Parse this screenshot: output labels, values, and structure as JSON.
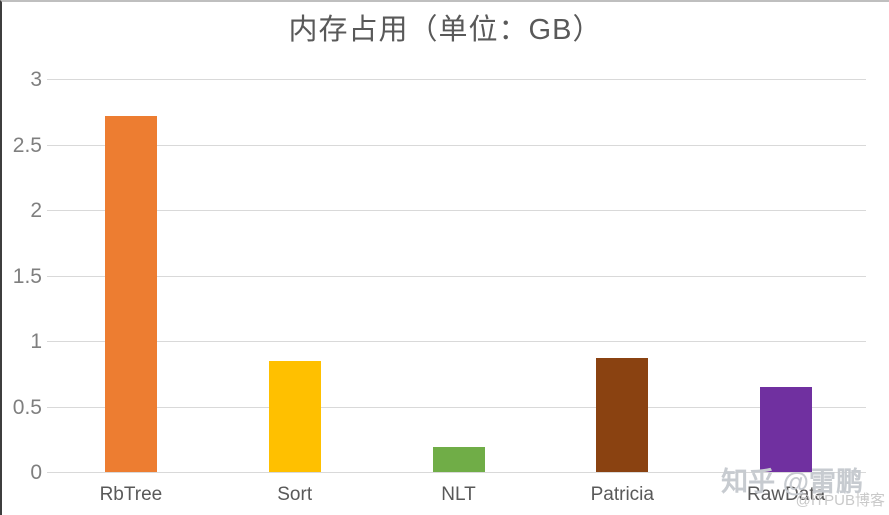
{
  "window": {
    "background": "#ffffff",
    "border_left_color": "#3d3d3d",
    "border_top_color": "#bfbfbf"
  },
  "chart_data": {
    "type": "bar",
    "title": "内存占用（单位：GB）",
    "categories": [
      "RbTree",
      "Sort",
      "NLT",
      "Patricia",
      "RawData"
    ],
    "values": [
      2.72,
      0.85,
      0.19,
      0.87,
      0.65
    ],
    "bar_colors": [
      "#ED7D31",
      "#FFC000",
      "#70AD47",
      "#8A4211",
      "#7030A0"
    ],
    "xlabel": "",
    "ylabel": "",
    "ylim": [
      0,
      3
    ],
    "yticks": [
      0,
      0.5,
      1,
      1.5,
      2,
      2.5,
      3
    ],
    "ytick_labels": [
      "0",
      "0.5",
      "1",
      "1.5",
      "2",
      "2.5",
      "3"
    ],
    "grid": "horizontal",
    "gridline_color": "#d9d9d9",
    "legend": "none",
    "title_color": "#595959",
    "ytick_color": "#7f7f7f",
    "xtick_color": "#595959"
  },
  "watermarks": {
    "zhihu": "知乎 @雷鹏",
    "itpub": "@ITPUB博客"
  }
}
